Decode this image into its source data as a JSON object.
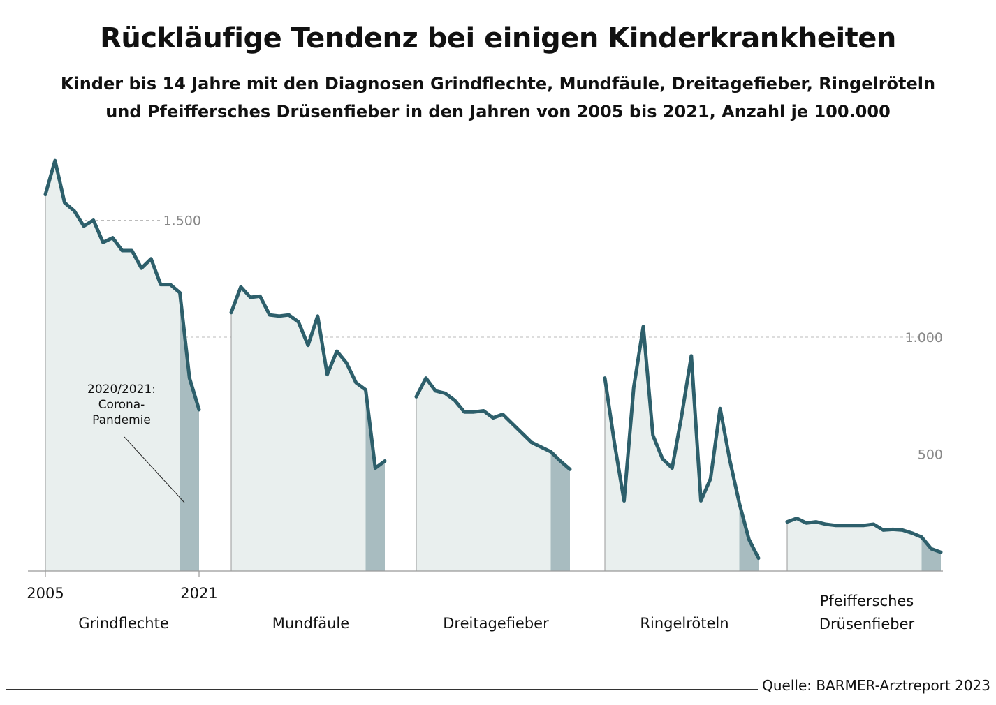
{
  "title": "Rückläufige Tendenz bei einigen Kinderkrankheiten",
  "subtitle": [
    "Kinder bis 14 Jahre mit den Diagnosen Grindflechte, Mundfäule, Dreitagefieber, Ringelröteln",
    "und Pfeiffersches Drüsenfieber in den Jahren von 2005 bis 2021, Anzahl je 100.000"
  ],
  "source": "Quelle: BARMER-Arztreport 2023",
  "colors": {
    "line": "#2d5f6b",
    "area": "#e9efee",
    "pandemic_area": "#a8bcc0",
    "grid": "#bbbbbb",
    "axis": "#999999"
  },
  "annotation": [
    "2020/2021:",
    "Corona-",
    "Pandemie"
  ],
  "chart_data": {
    "type": "area",
    "title": "Rückläufige Tendenz bei einigen Kinderkrankheiten",
    "x_start_label": "2005",
    "x_end_label": "2021",
    "ylim": [
      0,
      1800
    ],
    "yticks": [
      {
        "value": 500,
        "label": "500"
      },
      {
        "value": 1000,
        "label": "1.000"
      },
      {
        "value": 1500,
        "label": "1.500"
      }
    ],
    "grid": "dashed horizontal",
    "highlight": "2020/2021 shaded darker",
    "years": [
      2005,
      2006,
      2007,
      2008,
      2009,
      2010,
      2011,
      2012,
      2013,
      2014,
      2015,
      2016,
      2017,
      2018,
      2019,
      2020,
      2021
    ],
    "series": [
      {
        "name": "Grindflechte",
        "label_lines": [
          "Grindflechte"
        ],
        "values": [
          1610,
          1755,
          1575,
          1540,
          1475,
          1500,
          1405,
          1425,
          1370,
          1370,
          1295,
          1335,
          1225,
          1225,
          1190,
          825,
          690
        ]
      },
      {
        "name": "Mundfäule",
        "label_lines": [
          "Mundfäule"
        ],
        "values": [
          1105,
          1215,
          1170,
          1175,
          1095,
          1090,
          1095,
          1065,
          965,
          1090,
          840,
          940,
          890,
          805,
          775,
          440,
          470
        ]
      },
      {
        "name": "Dreitagefieber",
        "label_lines": [
          "Dreitagefieber"
        ],
        "values": [
          745,
          825,
          770,
          760,
          730,
          680,
          680,
          685,
          655,
          670,
          630,
          590,
          550,
          530,
          510,
          470,
          435
        ]
      },
      {
        "name": "Ringelröteln",
        "label_lines": [
          "Ringelröteln"
        ],
        "values": [
          825,
          545,
          300,
          785,
          1045,
          580,
          480,
          440,
          665,
          920,
          300,
          395,
          695,
          475,
          290,
          135,
          55
        ]
      },
      {
        "name": "Pfeiffersches Drüsenfieber",
        "label_lines": [
          "Pfeiffersches",
          "Drüsenfieber"
        ],
        "values": [
          210,
          225,
          205,
          210,
          200,
          195,
          195,
          195,
          195,
          200,
          175,
          178,
          175,
          162,
          145,
          95,
          80
        ]
      }
    ]
  }
}
